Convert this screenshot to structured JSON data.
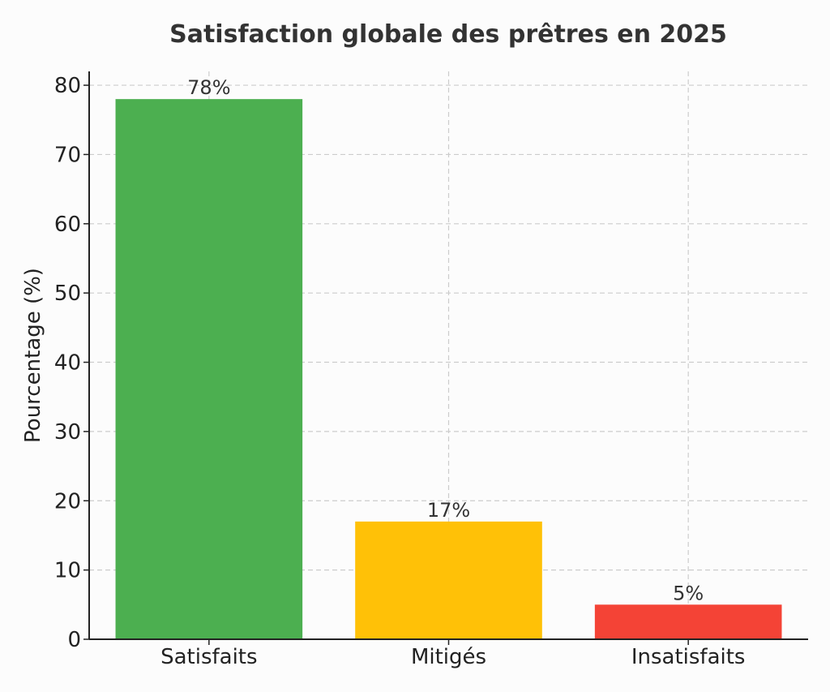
{
  "chart_data": {
    "type": "bar",
    "title": "Satisfaction globale des prêtres en 2025",
    "xlabel": "",
    "ylabel": "Pourcentage (%)",
    "categories": [
      "Satisfaits",
      "Mitigés",
      "Insatisfaits"
    ],
    "values": [
      78,
      17,
      5
    ],
    "value_labels": [
      "78%",
      "17%",
      "5%"
    ],
    "colors": [
      "#4caf50",
      "#ffc107",
      "#f44336"
    ],
    "ylim": [
      0,
      82
    ],
    "yticks": [
      0,
      10,
      20,
      30,
      40,
      50,
      60,
      70,
      80
    ],
    "grid": true,
    "legend": "none"
  }
}
